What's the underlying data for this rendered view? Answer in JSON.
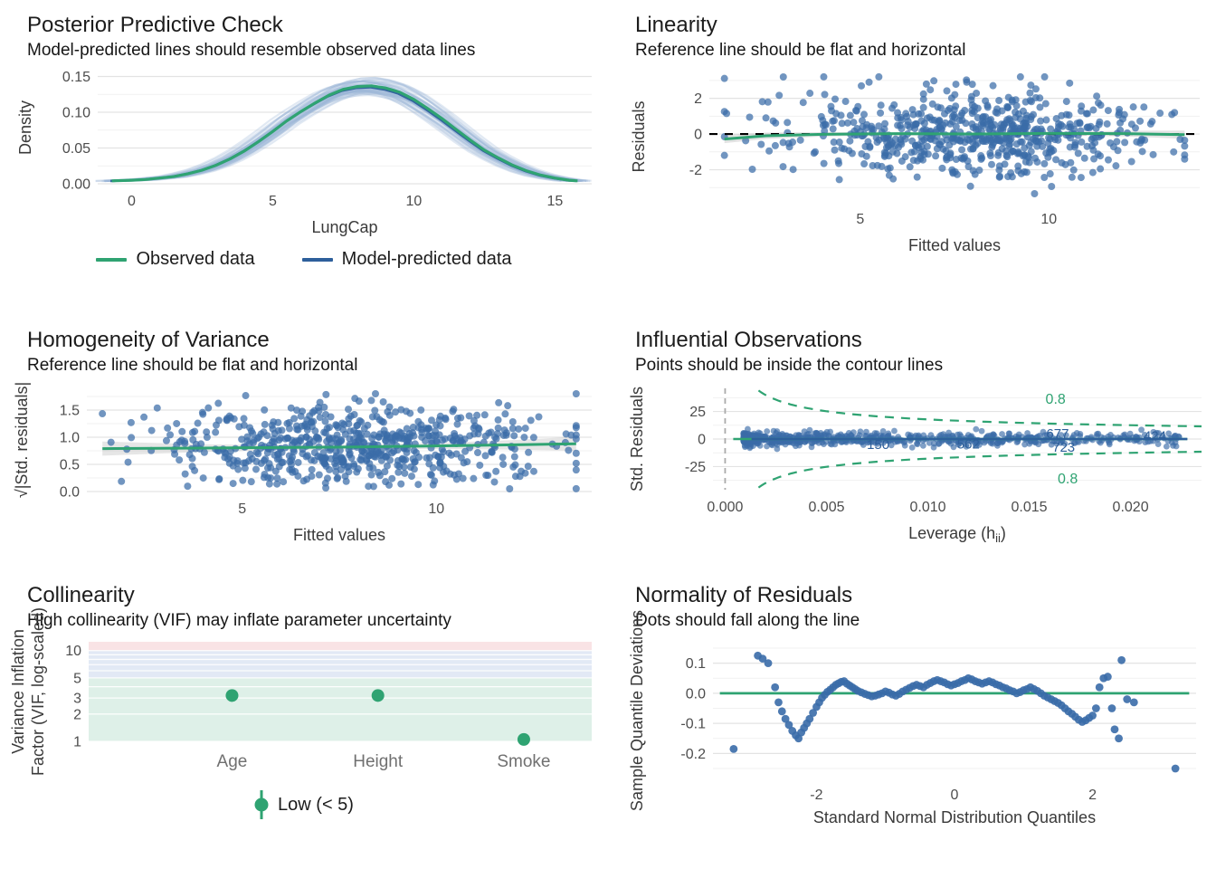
{
  "colors": {
    "green": "#2fa372",
    "blue_point": "#3a6ca8",
    "blue_line": "#2d5f9b",
    "blue_band": "#9db7d8",
    "ref_black": "#000000",
    "grid_major": "#e3e3e3",
    "grid_minor": "#f1f1f1",
    "gray_dashed": "#aaaaaa",
    "text_title": "#1c1c1c",
    "text_axis": "#4d4d4d",
    "text_axis_title": "#3a3a3a",
    "text_category": "#707070"
  },
  "chart_data": [
    {
      "id": "ppc",
      "type": "line",
      "title": "Posterior Predictive Check",
      "subtitle": "Model-predicted lines should resemble observed data lines",
      "xlabel": "LungCap",
      "ylabel": "Density",
      "xlim": [
        -1.2,
        16.3
      ],
      "ylim": [
        0,
        0.157
      ],
      "x_ticks": {
        "values": [
          0,
          5,
          10,
          15
        ],
        "labels": [
          "0",
          "5",
          "10",
          "15"
        ]
      },
      "y_ticks": {
        "values": [
          0,
          0.05,
          0.1,
          0.15
        ],
        "labels": [
          "0.00",
          "0.05",
          "0.10",
          "0.15"
        ]
      },
      "y_minor": [
        0.025,
        0.075,
        0.125
      ],
      "observed_curve": [
        [
          -0.7,
          0.004
        ],
        [
          0,
          0.005
        ],
        [
          0.5,
          0.006
        ],
        [
          1,
          0.008
        ],
        [
          1.5,
          0.01
        ],
        [
          2,
          0.014
        ],
        [
          2.5,
          0.019
        ],
        [
          3,
          0.026
        ],
        [
          3.5,
          0.035
        ],
        [
          4,
          0.046
        ],
        [
          4.5,
          0.059
        ],
        [
          5,
          0.073
        ],
        [
          5.5,
          0.088
        ],
        [
          6,
          0.101
        ],
        [
          6.5,
          0.113
        ],
        [
          7,
          0.124
        ],
        [
          7.5,
          0.132
        ],
        [
          8,
          0.136
        ],
        [
          8.5,
          0.137
        ],
        [
          9,
          0.134
        ],
        [
          9.5,
          0.128
        ],
        [
          10,
          0.118
        ],
        [
          10.5,
          0.105
        ],
        [
          11,
          0.091
        ],
        [
          11.5,
          0.076
        ],
        [
          12,
          0.061
        ],
        [
          12.5,
          0.047
        ],
        [
          13,
          0.036
        ],
        [
          13.5,
          0.026
        ],
        [
          14,
          0.018
        ],
        [
          14.5,
          0.012
        ],
        [
          15,
          0.008
        ],
        [
          15.5,
          0.005
        ],
        [
          15.8,
          0.004
        ]
      ],
      "predicted_spec": {
        "n_lines": 40,
        "seed": 11,
        "y_scale_sd": 0.05,
        "x_shift_sd": 0.22
      },
      "legend": [
        {
          "label": "Observed data",
          "color": "#2fa372"
        },
        {
          "label": "Model-predicted data",
          "color": "#2d5f9b"
        }
      ],
      "legend_position": "bottom"
    },
    {
      "id": "linearity",
      "type": "scatter",
      "title": "Linearity",
      "subtitle": "Reference line should be flat and horizontal",
      "xlabel": "Fitted values",
      "ylabel": "Residuals",
      "xlim": [
        1,
        14
      ],
      "ylim": [
        -3.8,
        3.5
      ],
      "x_ticks": {
        "values": [
          5,
          10
        ],
        "labels": [
          "5",
          "10"
        ]
      },
      "y_ticks": {
        "values": [
          -2,
          0,
          2
        ],
        "labels": [
          "-2",
          "0",
          "2"
        ]
      },
      "y_minor": [
        -3,
        -1,
        1,
        3
      ],
      "points_spec": {
        "n": 650,
        "seed": 42,
        "x_mean": 8,
        "x_sd": 2.5,
        "x_min": 1.4,
        "x_max": 13.6,
        "y_sd": 1.15,
        "y_min": -3.4,
        "y_max": 3.2
      },
      "ref_line": {
        "y": 0,
        "style": "dashed",
        "color": "#000000"
      },
      "smooth": {
        "color": "#2fa372",
        "points": [
          [
            1.4,
            -0.28
          ],
          [
            2.5,
            -0.1
          ],
          [
            4,
            -0.02
          ],
          [
            6,
            0.02
          ],
          [
            8,
            0
          ],
          [
            10,
            0.03
          ],
          [
            12,
            0.02
          ],
          [
            13.6,
            -0.04
          ]
        ]
      }
    },
    {
      "id": "homogeneity",
      "type": "scatter",
      "title": "Homogeneity of Variance",
      "subtitle": "Reference line should be flat and horizontal",
      "xlabel": "Fitted values",
      "ylabel": "√|Std. residuals|",
      "xlim": [
        1,
        14
      ],
      "ylim": [
        0,
        1.9
      ],
      "x_ticks": {
        "values": [
          5,
          10
        ],
        "labels": [
          "5",
          "10"
        ]
      },
      "y_ticks": {
        "values": [
          0,
          0.5,
          1.0,
          1.5
        ],
        "labels": [
          "0.0",
          "0.5",
          "1.0",
          "1.5"
        ]
      },
      "y_minor": [
        0.25,
        0.75,
        1.25,
        1.75
      ],
      "points_spec": {
        "n": 650,
        "seed": 77,
        "x_mean": 8,
        "x_sd": 2.5,
        "x_min": 1.4,
        "x_max": 13.6,
        "y_min": 0.05,
        "y_max": 1.8
      },
      "smooth": {
        "color": "#2fa372",
        "points": [
          [
            1.4,
            0.79
          ],
          [
            4,
            0.8
          ],
          [
            6,
            0.81
          ],
          [
            8,
            0.82
          ],
          [
            10,
            0.84
          ],
          [
            12,
            0.86
          ],
          [
            13.6,
            0.88
          ]
        ]
      }
    },
    {
      "id": "influential",
      "type": "scatter",
      "title": "Influential Observations",
      "subtitle": "Points should be inside the contour lines",
      "xlabel_parts": {
        "prefix": "Leverage (h",
        "sub": "ii",
        "suffix": ")"
      },
      "ylabel": "Std. Residuals",
      "xlim": [
        -0.0006,
        0.0235
      ],
      "ylim": [
        -46,
        46
      ],
      "x_ticks": {
        "values": [
          0,
          0.005,
          0.01,
          0.015,
          0.02
        ],
        "labels": [
          "0.000",
          "0.005",
          "0.010",
          "0.015",
          "0.020"
        ]
      },
      "y_ticks": {
        "values": [
          -25,
          0,
          25
        ],
        "labels": [
          "-25",
          "0",
          "25"
        ]
      },
      "y_minor": [
        -37.5,
        -12.5,
        12.5,
        37.5
      ],
      "points_spec": {
        "n": 680,
        "seed": 99,
        "x_min": 0.0009,
        "x_max": 0.0225,
        "x_pow": 1.9,
        "y_sd": 3,
        "y_clamp": 9
      },
      "hline_y": 0,
      "vline_x": 0,
      "contour": {
        "level_label": "0.8",
        "k": 3.2
      },
      "contour_labels": [
        {
          "text": "0.8",
          "x": 0.0163,
          "y": 36
        },
        {
          "text": "0.8",
          "x": 0.0169,
          "y": -36
        }
      ],
      "point_labels": [
        {
          "text": "150",
          "x": 0.00755,
          "y": -5
        },
        {
          "text": "562",
          "x": 0.012,
          "y": -4.5
        },
        {
          "text": "677",
          "x": 0.0164,
          "y": 5
        },
        {
          "text": "723",
          "x": 0.0167,
          "y": -7.5
        },
        {
          "text": "424",
          "x": 0.0212,
          "y": 3
        }
      ]
    },
    {
      "id": "collinearity",
      "type": "scatter",
      "title": "Collinearity",
      "subtitle": "High collinearity (VIF) may inflate parameter uncertainty",
      "xlabel": "",
      "ylabel_lines": [
        "Variance Inflation",
        "Factor (VIF, log-scaled)"
      ],
      "categories": [
        "Age",
        "Height",
        "Smoke"
      ],
      "values": [
        3.2,
        3.2,
        1.05
      ],
      "error_low": [
        2.9,
        2.9,
        1.0
      ],
      "error_high": [
        3.5,
        3.5,
        1.12
      ],
      "scale": "log10",
      "ylim": [
        1,
        12.5
      ],
      "y_ticks": {
        "values": [
          1,
          2,
          3,
          5,
          10
        ],
        "labels": [
          "1",
          "2",
          "3",
          "5",
          "10"
        ]
      },
      "y_grid": [
        1,
        2,
        3,
        4,
        5,
        6,
        7,
        8,
        9,
        10
      ],
      "bands": [
        {
          "from": 1,
          "to": 5,
          "color": "rgba(47,163,114,0.16)"
        },
        {
          "from": 5,
          "to": 10,
          "color": "rgba(77,121,195,0.16)"
        },
        {
          "from": 10,
          "to": 12.5,
          "color": "rgba(217,83,96,0.16)"
        }
      ],
      "legend": [
        {
          "label": "Low (< 5)",
          "color": "#2fa372"
        }
      ],
      "legend_position": "bottom"
    },
    {
      "id": "normality",
      "type": "scatter",
      "title": "Normality of Residuals",
      "subtitle": "Dots should fall along the line",
      "xlabel": "Standard Normal Distribution Quantiles",
      "ylabel": "Sample Quantile Deviations",
      "xlim": [
        -3.5,
        3.5
      ],
      "ylim": [
        -0.28,
        0.165
      ],
      "x_ticks": {
        "values": [
          -2,
          0,
          2
        ],
        "labels": [
          "-2",
          "0",
          "2"
        ]
      },
      "y_ticks": {
        "values": [
          -0.2,
          -0.1,
          0,
          0.1
        ],
        "labels": [
          "-0.2",
          "-0.1",
          "0.0",
          "0.1"
        ]
      },
      "y_minor": [
        -0.25,
        -0.15,
        -0.05,
        0.05,
        0.15
      ],
      "hline": {
        "y": 0,
        "color": "#2fa372"
      },
      "points": [
        [
          -3.2,
          -0.185
        ],
        [
          -2.85,
          0.125
        ],
        [
          -2.78,
          0.115
        ],
        [
          -2.7,
          0.1
        ],
        [
          -2.6,
          0.02
        ],
        [
          -2.55,
          -0.03
        ],
        [
          -2.5,
          -0.06
        ],
        [
          -2.45,
          -0.085
        ],
        [
          -2.4,
          -0.105
        ],
        [
          -2.35,
          -0.125
        ],
        [
          -2.3,
          -0.14
        ],
        [
          -2.26,
          -0.15
        ],
        [
          -2.22,
          -0.13
        ],
        [
          -2.18,
          -0.115
        ],
        [
          -2.14,
          -0.1
        ],
        [
          -2.1,
          -0.085
        ],
        [
          -2.05,
          -0.065
        ],
        [
          -2.0,
          -0.045
        ],
        [
          -1.96,
          -0.03
        ],
        [
          -1.92,
          -0.015
        ],
        [
          -1.88,
          -0.005
        ],
        [
          -1.84,
          0.005
        ],
        [
          -1.8,
          0.012
        ],
        [
          -1.76,
          0.02
        ],
        [
          -1.72,
          0.028
        ],
        [
          -1.68,
          0.033
        ],
        [
          -1.64,
          0.038
        ],
        [
          -1.6,
          0.04
        ],
        [
          -1.56,
          0.032
        ],
        [
          -1.52,
          0.026
        ],
        [
          -1.48,
          0.02
        ],
        [
          -1.44,
          0.014
        ],
        [
          -1.4,
          0.008
        ],
        [
          -1.35,
          0.003
        ],
        [
          -1.3,
          -0.002
        ],
        [
          -1.25,
          -0.006
        ],
        [
          -1.2,
          -0.01
        ],
        [
          -1.15,
          -0.008
        ],
        [
          -1.1,
          -0.004
        ],
        [
          -1.05,
          0.0
        ],
        [
          -1.0,
          0.006
        ],
        [
          -0.95,
          0.002
        ],
        [
          -0.9,
          -0.004
        ],
        [
          -0.85,
          -0.008
        ],
        [
          -0.8,
          -0.002
        ],
        [
          -0.75,
          0.006
        ],
        [
          -0.7,
          0.012
        ],
        [
          -0.65,
          0.018
        ],
        [
          -0.6,
          0.024
        ],
        [
          -0.55,
          0.028
        ],
        [
          -0.5,
          0.024
        ],
        [
          -0.45,
          0.02
        ],
        [
          -0.4,
          0.028
        ],
        [
          -0.35,
          0.034
        ],
        [
          -0.3,
          0.04
        ],
        [
          -0.25,
          0.044
        ],
        [
          -0.2,
          0.04
        ],
        [
          -0.15,
          0.036
        ],
        [
          -0.1,
          0.03
        ],
        [
          -0.05,
          0.026
        ],
        [
          0.0,
          0.03
        ],
        [
          0.05,
          0.034
        ],
        [
          0.1,
          0.04
        ],
        [
          0.15,
          0.044
        ],
        [
          0.2,
          0.05
        ],
        [
          0.25,
          0.046
        ],
        [
          0.3,
          0.04
        ],
        [
          0.35,
          0.036
        ],
        [
          0.4,
          0.032
        ],
        [
          0.45,
          0.036
        ],
        [
          0.5,
          0.04
        ],
        [
          0.55,
          0.036
        ],
        [
          0.6,
          0.03
        ],
        [
          0.65,
          0.026
        ],
        [
          0.7,
          0.02
        ],
        [
          0.75,
          0.016
        ],
        [
          0.8,
          0.01
        ],
        [
          0.85,
          0.006
        ],
        [
          0.9,
          0.0
        ],
        [
          0.95,
          0.004
        ],
        [
          1.0,
          0.01
        ],
        [
          1.05,
          0.014
        ],
        [
          1.1,
          0.02
        ],
        [
          1.15,
          0.014
        ],
        [
          1.2,
          0.008
        ],
        [
          1.25,
          0.0
        ],
        [
          1.3,
          -0.008
        ],
        [
          1.35,
          -0.014
        ],
        [
          1.4,
          -0.02
        ],
        [
          1.45,
          -0.026
        ],
        [
          1.5,
          -0.032
        ],
        [
          1.55,
          -0.04
        ],
        [
          1.6,
          -0.05
        ],
        [
          1.65,
          -0.06
        ],
        [
          1.7,
          -0.068
        ],
        [
          1.75,
          -0.078
        ],
        [
          1.8,
          -0.088
        ],
        [
          1.85,
          -0.095
        ],
        [
          1.9,
          -0.09
        ],
        [
          1.95,
          -0.082
        ],
        [
          2.0,
          -0.074
        ],
        [
          2.05,
          -0.05
        ],
        [
          2.1,
          0.02
        ],
        [
          2.16,
          0.05
        ],
        [
          2.22,
          0.055
        ],
        [
          2.28,
          -0.05
        ],
        [
          2.32,
          -0.12
        ],
        [
          2.38,
          -0.15
        ],
        [
          2.42,
          0.11
        ],
        [
          2.5,
          -0.02
        ],
        [
          2.6,
          -0.03
        ],
        [
          3.2,
          -0.25
        ]
      ]
    }
  ]
}
